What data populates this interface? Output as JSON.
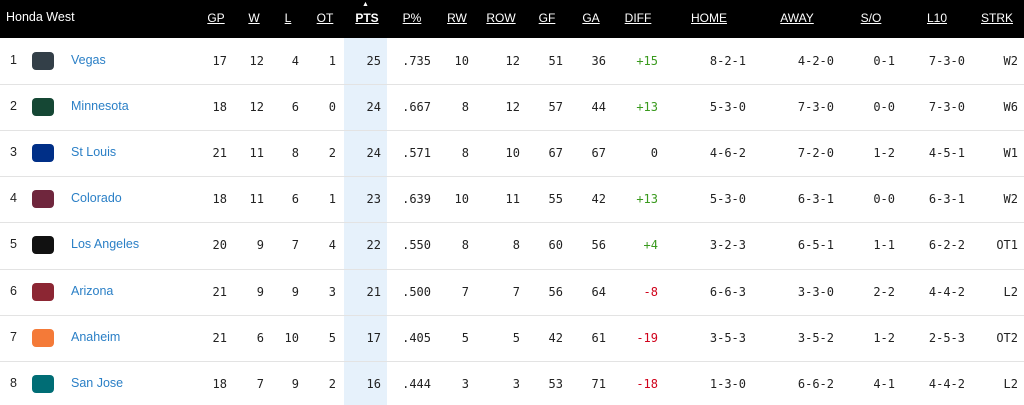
{
  "header": {
    "title": "Honda West",
    "columns": [
      "GP",
      "W",
      "L",
      "OT",
      "PTS",
      "P%",
      "RW",
      "ROW",
      "GF",
      "GA",
      "DIFF",
      "HOME",
      "AWAY",
      "S/O",
      "L10",
      "STRK"
    ]
  },
  "table": {
    "rows": [
      [
        1,
        "Vegas",
        17,
        12,
        4,
        1,
        25,
        ".735",
        10,
        12,
        51,
        36,
        "+15",
        "8-2-1",
        "4-2-0",
        "0-1",
        "7-3-0",
        "W2"
      ],
      [
        2,
        "Minnesota",
        18,
        12,
        6,
        0,
        24,
        ".667",
        8,
        12,
        57,
        44,
        "+13",
        "5-3-0",
        "7-3-0",
        "0-0",
        "7-3-0",
        "W6"
      ],
      [
        3,
        "St Louis",
        21,
        11,
        8,
        2,
        24,
        ".571",
        8,
        10,
        67,
        67,
        "0",
        "4-6-2",
        "7-2-0",
        "1-2",
        "4-5-1",
        "W1"
      ],
      [
        4,
        "Colorado",
        18,
        11,
        6,
        1,
        23,
        ".639",
        10,
        11,
        55,
        42,
        "+13",
        "5-3-0",
        "6-3-1",
        "0-0",
        "6-3-1",
        "W2"
      ],
      [
        5,
        "Los Angeles",
        20,
        9,
        7,
        4,
        22,
        ".550",
        8,
        8,
        60,
        56,
        "+4",
        "3-2-3",
        "6-5-1",
        "1-1",
        "6-2-2",
        "OT1"
      ],
      [
        6,
        "Arizona",
        21,
        9,
        9,
        3,
        21,
        ".500",
        7,
        7,
        56,
        64,
        "-8",
        "6-6-3",
        "3-3-0",
        "2-2",
        "4-4-2",
        "L2"
      ],
      [
        7,
        "Anaheim",
        21,
        6,
        10,
        5,
        17,
        ".405",
        5,
        5,
        42,
        61,
        "-19",
        "3-5-3",
        "3-5-2",
        "1-2",
        "2-5-3",
        "OT2"
      ],
      [
        8,
        "San Jose",
        18,
        7,
        9,
        2,
        16,
        ".444",
        3,
        3,
        53,
        71,
        "-18",
        "1-3-0",
        "6-6-2",
        "4-1",
        "4-4-2",
        "L2"
      ]
    ]
  }
}
